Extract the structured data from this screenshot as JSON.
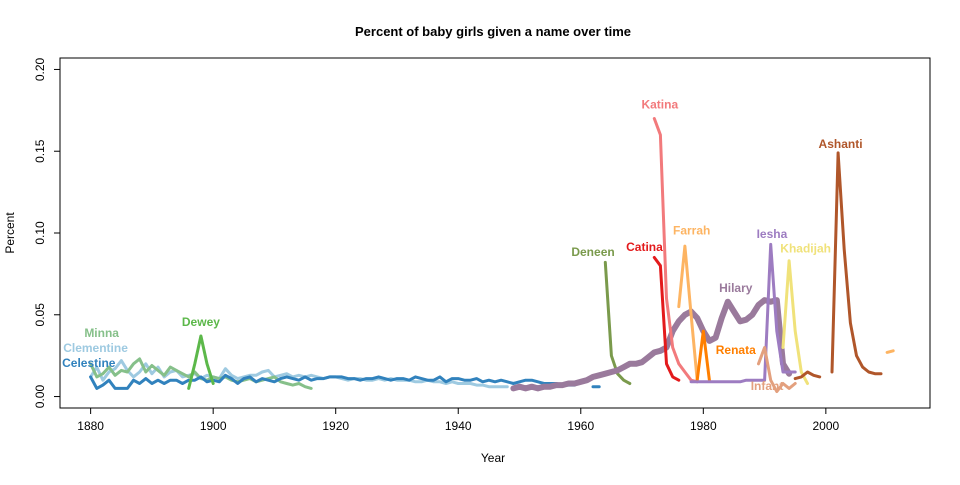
{
  "chart_data": {
    "type": "line",
    "title": "Percent of baby girls given a name over time",
    "xlabel": "Year",
    "ylabel": "Percent",
    "xlim": [
      1875,
      2017
    ],
    "ylim": [
      -0.007,
      0.207
    ],
    "xticks": [
      "1880",
      "1900",
      "1920",
      "1940",
      "1960",
      "1980",
      "2000"
    ],
    "yticks": [
      "0.00",
      "0.05",
      "0.10",
      "0.15",
      "0.20"
    ],
    "grid": false,
    "series": [
      {
        "name": "Clementine",
        "color": "#9ecae1",
        "width": 3,
        "label_at": [
          1880.8,
          0.0245
        ],
        "segments": [
          {
            "start": 1880,
            "values": [
              0.012,
              0.018,
              0.01,
              0.015,
              0.017,
              0.022,
              0.016,
              0.012,
              0.015,
              0.02,
              0.014,
              0.018,
              0.012,
              0.015,
              0.016,
              0.012,
              0.013,
              0.014,
              0.011,
              0.013,
              0.012,
              0.011,
              0.017,
              0.013,
              0.011,
              0.012,
              0.013,
              0.013,
              0.015,
              0.016,
              0.012,
              0.013,
              0.014,
              0.012,
              0.013,
              0.012,
              0.013,
              0.012,
              0.011,
              0.012,
              0.012,
              0.011,
              0.01,
              0.011,
              0.011,
              0.01,
              0.01,
              0.011,
              0.01,
              0.011,
              0.01,
              0.01,
              0.01,
              0.009,
              0.009,
              0.01,
              0.009,
              0.009,
              0.008,
              0.009,
              0.008,
              0.008,
              0.008,
              0.007,
              0.007,
              0.006,
              0.006,
              0.006,
              0.006
            ]
          }
        ]
      },
      {
        "name": "Minna",
        "color": "#86c08a",
        "width": 3,
        "label_at": [
          1881.8,
          0.03
        ],
        "segments": [
          {
            "start": 1880,
            "values": [
              0.02,
              0.012,
              0.014,
              0.018,
              0.013,
              0.016,
              0.015,
              0.02,
              0.023,
              0.015,
              0.019,
              0.016,
              0.013,
              0.018,
              0.016,
              0.014,
              0.012,
              0.015,
              0.011,
              0.01,
              0.012,
              0.011,
              0.012,
              0.01,
              0.009,
              0.01,
              0.011,
              0.009,
              0.01,
              0.011,
              0.012,
              0.009,
              0.008,
              0.007,
              0.008,
              0.006,
              0.005
            ]
          }
        ]
      },
      {
        "name": "Celestine",
        "color": "#3182bd",
        "width": 3,
        "label_at": [
          1879.7,
          0.018
        ],
        "segments": [
          {
            "start": 1880,
            "values": [
              0.012,
              0.005,
              0.007,
              0.01,
              0.005,
              0.005,
              0.005,
              0.01,
              0.008,
              0.011,
              0.008,
              0.01,
              0.008,
              0.01,
              0.01,
              0.008,
              0.01,
              0.01,
              0.012,
              0.009,
              0.01,
              0.009,
              0.013,
              0.011,
              0.008,
              0.011,
              0.012,
              0.009,
              0.011,
              0.01,
              0.009,
              0.011,
              0.012,
              0.011,
              0.01,
              0.012,
              0.01,
              0.011,
              0.011,
              0.012,
              0.012,
              0.012,
              0.011,
              0.011,
              0.01,
              0.011,
              0.011,
              0.012,
              0.011,
              0.01,
              0.011,
              0.011,
              0.01,
              0.012,
              0.011,
              0.01,
              0.01,
              0.012,
              0.009,
              0.011,
              0.011,
              0.01,
              0.01,
              0.011,
              0.009,
              0.01,
              0.009,
              0.01,
              0.009,
              0.008,
              0.009,
              0.01,
              0.01,
              0.009,
              0.008,
              0.008,
              0.008,
              0.007,
              0.007,
              0.007
            ]
          },
          {
            "start": 1962,
            "values": [
              0.006,
              0.006
            ]
          }
        ]
      },
      {
        "name": "Dewey",
        "color": "#5cb84a",
        "width": 3,
        "label_at": [
          1898,
          0.043
        ],
        "segments": [
          {
            "start": 1896,
            "values": [
              0.005,
              0.02,
              0.037,
              0.02,
              0.008
            ]
          }
        ]
      },
      {
        "name": "Deneen",
        "color": "#7a9a4c",
        "width": 3,
        "label_at": [
          1962,
          0.086
        ],
        "segments": [
          {
            "start": 1964,
            "values": [
              0.082,
              0.025,
              0.014,
              0.01,
              0.008
            ]
          }
        ]
      },
      {
        "name": "Hilary",
        "color": "#9a7a9c",
        "width": 6,
        "label_at": [
          1985.3,
          0.064
        ],
        "segments": [
          {
            "start": 1949,
            "values": [
              0.005,
              0.006,
              0.005,
              0.006,
              0.005,
              0.006,
              0.006,
              0.007,
              0.007,
              0.008,
              0.008,
              0.009,
              0.01,
              0.012,
              0.013,
              0.014,
              0.015,
              0.016,
              0.018,
              0.02,
              0.02,
              0.021,
              0.024,
              0.027,
              0.028,
              0.03,
              0.04,
              0.046,
              0.05,
              0.052,
              0.048,
              0.04,
              0.034,
              0.036,
              0.048,
              0.058,
              0.052,
              0.046,
              0.047,
              0.05,
              0.056,
              0.059,
              0.058,
              0.059,
              0.02,
              0.014
            ]
          }
        ]
      },
      {
        "name": "Katina",
        "color": "#f27a7c",
        "width": 3,
        "label_at": [
          1972.9,
          0.176
        ],
        "segments": [
          {
            "start": 1972,
            "values": [
              0.17,
              0.16,
              0.06,
              0.03,
              0.02,
              0.015,
              0.01,
              0.009
            ]
          }
        ]
      },
      {
        "name": "Catina",
        "color": "#e31a1c",
        "width": 3,
        "label_at": [
          1970.4,
          0.089
        ],
        "segments": [
          {
            "start": 1972,
            "values": [
              0.085,
              0.08,
              0.02,
              0.012,
              0.01
            ]
          }
        ]
      },
      {
        "name": "Farrah",
        "color": "#fdb462",
        "width": 3,
        "label_at": [
          1978.1,
          0.099
        ],
        "segments": [
          {
            "start": 1976,
            "values": [
              0.055,
              0.092,
              0.05,
              0.01
            ]
          },
          {
            "start": 2010,
            "values": [
              0.027,
              0.028
            ]
          }
        ]
      },
      {
        "name": "Renata",
        "color": "#ff7f00",
        "width": 3,
        "label_at": [
          1985.3,
          0.026
        ],
        "segments": [
          {
            "start": 1979,
            "values": [
              0.01,
              0.04,
              0.01
            ]
          }
        ]
      },
      {
        "name": "Iesha",
        "color": "#9d7cc1",
        "width": 3,
        "label_at": [
          1991.2,
          0.097
        ],
        "segments": [
          {
            "start": 1978,
            "values": [
              0.009,
              0.009,
              0.009,
              0.009,
              0.009,
              0.009,
              0.009,
              0.009,
              0.009,
              0.01,
              0.01,
              0.01,
              0.01,
              0.093,
              0.04,
              0.015,
              0.015,
              0.015
            ]
          }
        ]
      },
      {
        "name": "Infant",
        "color": "#e3a07e",
        "width": 3,
        "label_at": [
          1990.4,
          0.004
        ],
        "segments": [
          {
            "start": 1989,
            "values": [
              0.02,
              0.03,
              0.01,
              0.003,
              0.008,
              0.005,
              0.008
            ]
          }
        ]
      },
      {
        "name": "Khadijah",
        "color": "#f0e27a",
        "width": 3,
        "label_at": [
          1996.7,
          0.088
        ],
        "segments": [
          {
            "start": 1993,
            "values": [
              0.03,
              0.083,
              0.04,
              0.015,
              0.008
            ]
          }
        ]
      },
      {
        "name": "Ashanti",
        "color": "#b0562a",
        "width": 3,
        "label_at": [
          2002.4,
          0.152
        ],
        "segments": [
          {
            "start": 1995,
            "values": [
              0.011,
              0.012,
              0.015,
              0.013,
              0.012
            ]
          },
          {
            "start": 2001,
            "values": [
              0.015,
              0.149,
              0.09,
              0.045,
              0.025,
              0.018,
              0.015,
              0.014,
              0.014
            ]
          }
        ]
      }
    ]
  }
}
